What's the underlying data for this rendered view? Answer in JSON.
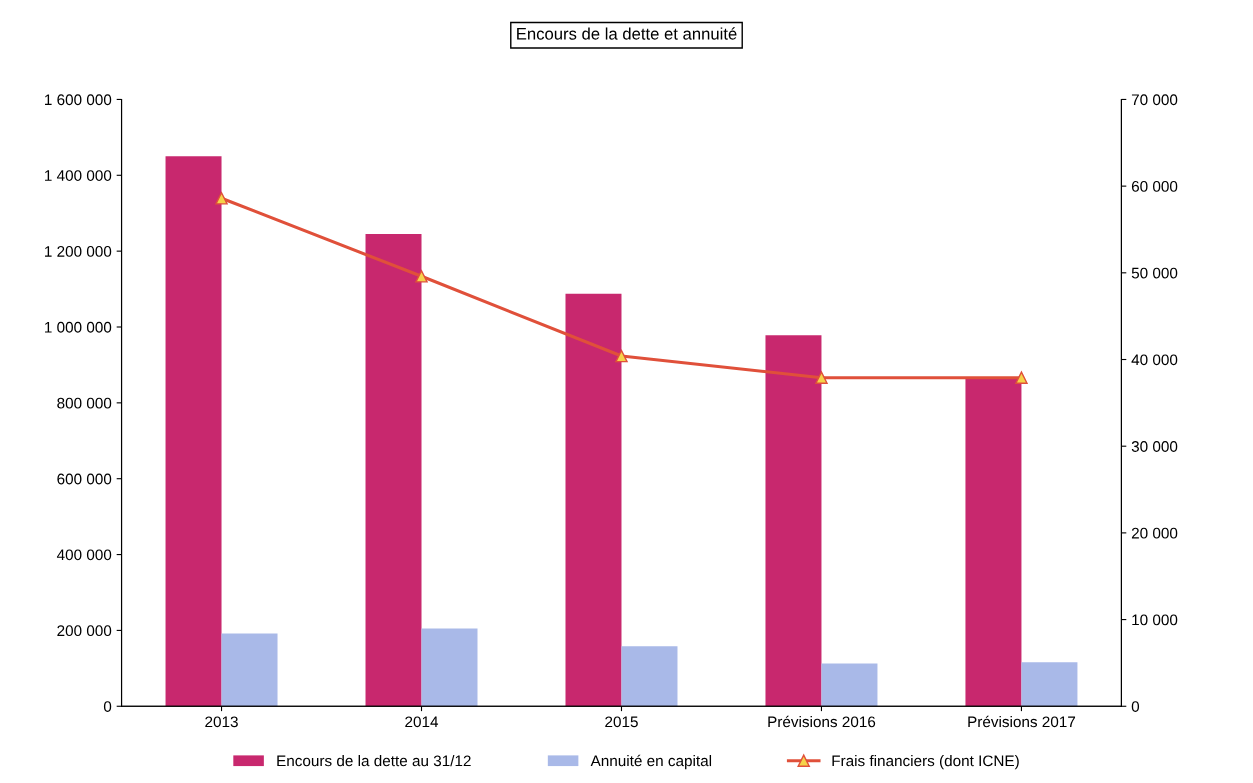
{
  "chart_data": {
    "type": "bar",
    "title": "Encours de la dette et annuité",
    "categories": [
      "2013",
      "2014",
      "2015",
      "Prévisions 2016",
      "Prévisions 2017"
    ],
    "series": [
      {
        "name": "Encours de la dette au 31/12",
        "color": "#c8286e",
        "values": [
          1450000,
          1245000,
          1088000,
          978000,
          864000
        ]
      },
      {
        "name": "Annuité en capital",
        "color": "#a9b9e8",
        "values": [
          192000,
          205000,
          158000,
          113000,
          116000
        ]
      },
      {
        "name": "Frais financiers (dont ICNE)",
        "color": "#e0503a",
        "type": "line",
        "axis": "y2",
        "marker": "triangle",
        "values": [
          58600,
          49600,
          40400,
          37900,
          37900
        ]
      }
    ],
    "ylim": [
      0,
      1600000
    ],
    "yticks": [
      {
        "value": 0,
        "label": "0"
      },
      {
        "value": 200000,
        "label": "200 000"
      },
      {
        "value": 400000,
        "label": "400 000"
      },
      {
        "value": 600000,
        "label": "600 000"
      },
      {
        "value": 800000,
        "label": "800 000"
      },
      {
        "value": 1000000,
        "label": "1 000 000"
      },
      {
        "value": 1200000,
        "label": "1 200 000"
      },
      {
        "value": 1400000,
        "label": "1 400 000"
      },
      {
        "value": 1600000,
        "label": "1 600 000"
      }
    ],
    "y2lim": [
      0,
      70000
    ],
    "y2ticks": [
      {
        "value": 0,
        "label": "0"
      },
      {
        "value": 10000,
        "label": "10 000"
      },
      {
        "value": 20000,
        "label": "20 000"
      },
      {
        "value": 30000,
        "label": "30 000"
      },
      {
        "value": 40000,
        "label": "40 000"
      },
      {
        "value": 50000,
        "label": "50 000"
      },
      {
        "value": 60000,
        "label": "60 000"
      },
      {
        "value": 70000,
        "label": "70 000"
      }
    ],
    "legend": "bottom",
    "grid": false
  }
}
